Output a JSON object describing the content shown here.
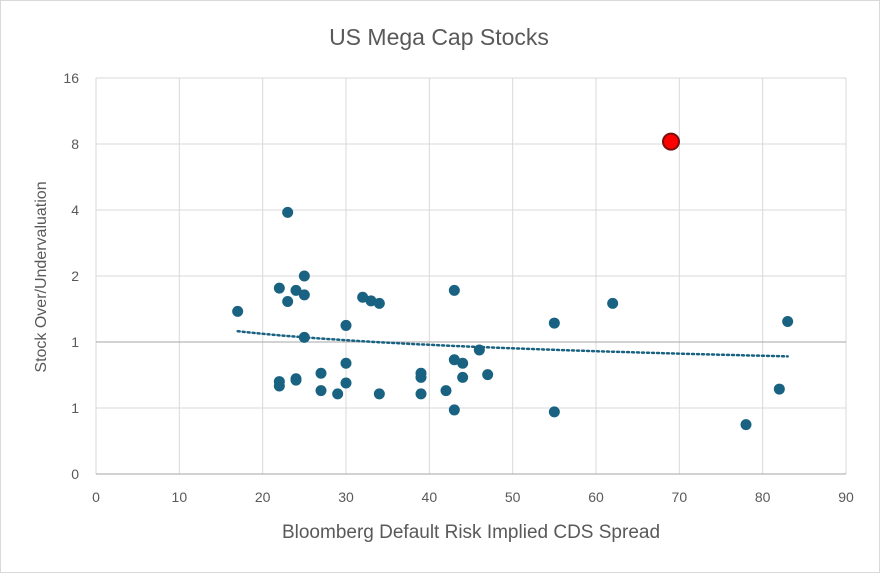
{
  "chart_data": {
    "type": "scatter",
    "title": "US Mega Cap Stocks",
    "xlabel": "Bloomberg Default Risk Implied CDS Spread",
    "ylabel": "Stock Over/Undervaluation",
    "x_scale": "linear",
    "y_scale": "log2",
    "xlim": [
      0,
      90
    ],
    "ylim": [
      0.25,
      16
    ],
    "x_ticks": [
      0,
      10,
      20,
      30,
      40,
      50,
      60,
      70,
      80,
      90
    ],
    "y_ticks": [
      0.25,
      0.5,
      1,
      2,
      4,
      8,
      16
    ],
    "y_tick_labels": [
      "0",
      "1",
      "1",
      "2",
      "4",
      "8",
      "16"
    ],
    "grid": true,
    "legend": "none",
    "colors": {
      "points": "#1a6281",
      "highlight": "#ff0000",
      "highlight_edge": "#7a1010",
      "trendline": "#1a6281"
    },
    "points": [
      {
        "x": 17,
        "y": 1.38
      },
      {
        "x": 22,
        "y": 1.76
      },
      {
        "x": 22,
        "y": 0.66
      },
      {
        "x": 22,
        "y": 0.63
      },
      {
        "x": 23,
        "y": 3.9
      },
      {
        "x": 23,
        "y": 1.53
      },
      {
        "x": 24,
        "y": 1.72
      },
      {
        "x": 24,
        "y": 0.68
      },
      {
        "x": 24,
        "y": 0.67
      },
      {
        "x": 25,
        "y": 2.0
      },
      {
        "x": 25,
        "y": 1.64
      },
      {
        "x": 25,
        "y": 1.05
      },
      {
        "x": 27,
        "y": 0.72
      },
      {
        "x": 27,
        "y": 0.6
      },
      {
        "x": 29,
        "y": 0.58
      },
      {
        "x": 30,
        "y": 1.19
      },
      {
        "x": 30,
        "y": 0.8
      },
      {
        "x": 30,
        "y": 0.65
      },
      {
        "x": 32,
        "y": 1.6
      },
      {
        "x": 33,
        "y": 1.54
      },
      {
        "x": 34,
        "y": 1.5
      },
      {
        "x": 34,
        "y": 0.58
      },
      {
        "x": 39,
        "y": 0.72
      },
      {
        "x": 39,
        "y": 0.69
      },
      {
        "x": 39,
        "y": 0.58
      },
      {
        "x": 42,
        "y": 0.6
      },
      {
        "x": 43,
        "y": 1.72
      },
      {
        "x": 43,
        "y": 0.83
      },
      {
        "x": 43,
        "y": 0.49
      },
      {
        "x": 44,
        "y": 0.8
      },
      {
        "x": 44,
        "y": 0.69
      },
      {
        "x": 46,
        "y": 0.92
      },
      {
        "x": 47,
        "y": 0.71
      },
      {
        "x": 55,
        "y": 1.22
      },
      {
        "x": 55,
        "y": 0.48
      },
      {
        "x": 62,
        "y": 1.5
      },
      {
        "x": 78,
        "y": 0.42
      },
      {
        "x": 82,
        "y": 0.61
      },
      {
        "x": 83,
        "y": 1.24
      }
    ],
    "highlight_point": {
      "x": 69,
      "y": 8.2
    },
    "trendline": {
      "style": "dotted",
      "x": [
        17,
        83
      ],
      "y": [
        1.12,
        0.86
      ]
    }
  }
}
